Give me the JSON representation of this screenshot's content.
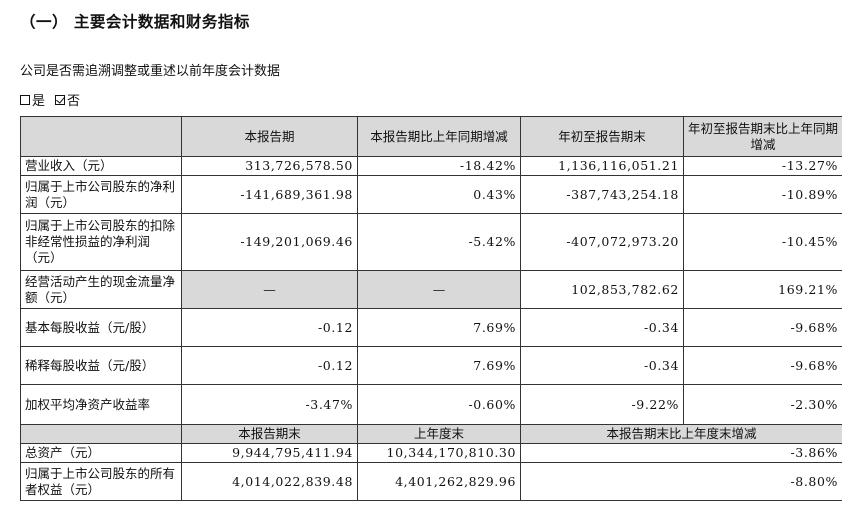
{
  "heading": "（一）  主要会计数据和财务指标",
  "retro_question": "公司是否需追溯调整或重述以前年度会计数据",
  "option_yes": "是",
  "option_no": "否",
  "header": {
    "col1": "本报告期",
    "col2": "本报告期比上年同期增减",
    "col3": "年初至报告期末",
    "col4": "年初至报告期末比上年同期增减"
  },
  "rows": [
    {
      "label": "营业收入（元）",
      "v1": "313,726,578.50",
      "v2": "-18.42%",
      "v3": "1,136,116,051.21",
      "v4": "-13.27%"
    },
    {
      "label": "归属于上市公司股东的净利润（元）",
      "v1": "-141,689,361.98",
      "v2": "0.43%",
      "v3": "-387,743,254.18",
      "v4": "-10.89%"
    },
    {
      "label": "归属于上市公司股东的扣除非经常性损益的净利润（元）",
      "v1": "-149,201,069.46",
      "v2": "-5.42%",
      "v3": "-407,072,973.20",
      "v4": "-10.45%"
    },
    {
      "label": "经营活动产生的现金流量净额（元）",
      "v1": "—",
      "v2": "—",
      "v3": "102,853,782.62",
      "v4": "169.21%"
    },
    {
      "label": "基本每股收益（元/股）",
      "v1": "-0.12",
      "v2": "7.69%",
      "v3": "-0.34",
      "v4": "-9.68%"
    },
    {
      "label": "稀释每股收益（元/股）",
      "v1": "-0.12",
      "v2": "7.69%",
      "v3": "-0.34",
      "v4": "-9.68%"
    },
    {
      "label": "加权平均净资产收益率",
      "v1": "-3.47%",
      "v2": "-0.60%",
      "v3": "-9.22%",
      "v4": "-2.30%"
    }
  ],
  "header2": {
    "col1": "本报告期末",
    "col2": "上年度末",
    "col3": "本报告期末比上年度末增减"
  },
  "rows2": [
    {
      "label": "总资产（元）",
      "v1": "9,944,795,411.94",
      "v2": "10,344,170,810.30",
      "v3": "-3.86%"
    },
    {
      "label": "归属于上市公司股东的所有者权益（元）",
      "v1": "4,014,022,839.48",
      "v2": "4,401,262,829.96",
      "v3": "-8.80%"
    }
  ]
}
